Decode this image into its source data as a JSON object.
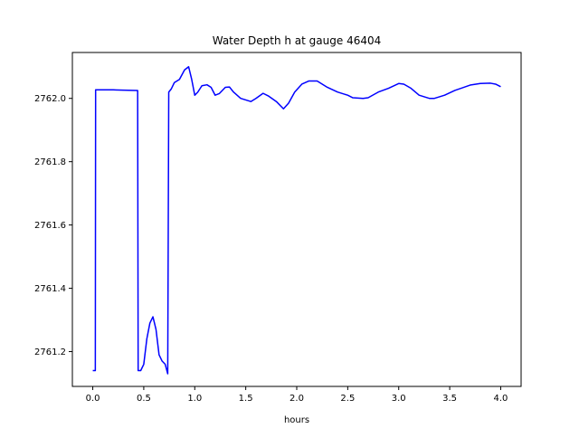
{
  "chart_data": {
    "type": "line",
    "title": "Water Depth h at gauge 46404",
    "xlabel": "hours",
    "ylabel": "",
    "xlim": [
      -0.2,
      4.2
    ],
    "ylim": [
      2761.09,
      2762.145
    ],
    "xticks": [
      0.0,
      0.5,
      1.0,
      1.5,
      2.0,
      2.5,
      3.0,
      3.5,
      4.0
    ],
    "xtick_labels": [
      "0.0",
      "0.5",
      "1.0",
      "1.5",
      "2.0",
      "2.5",
      "3.0",
      "3.5",
      "4.0"
    ],
    "yticks": [
      2761.2,
      2761.4,
      2761.6,
      2761.8,
      2762.0
    ],
    "ytick_labels": [
      "2761.2",
      "2761.4",
      "2761.6",
      "2761.8",
      "2762.0"
    ],
    "grid": false,
    "series_color": "#0000ff",
    "series": [
      {
        "points": [
          [
            0.0,
            2761.14
          ],
          [
            0.025,
            2761.14
          ],
          [
            0.028,
            2762.027
          ],
          [
            0.1,
            2762.027
          ],
          [
            0.2,
            2762.027
          ],
          [
            0.3,
            2762.026
          ],
          [
            0.44,
            2762.025
          ],
          [
            0.445,
            2761.14
          ],
          [
            0.47,
            2761.14
          ],
          [
            0.5,
            2761.16
          ],
          [
            0.53,
            2761.24
          ],
          [
            0.56,
            2761.29
          ],
          [
            0.59,
            2761.31
          ],
          [
            0.62,
            2761.27
          ],
          [
            0.65,
            2761.19
          ],
          [
            0.68,
            2761.17
          ],
          [
            0.71,
            2761.16
          ],
          [
            0.735,
            2761.13
          ],
          [
            0.745,
            2762.02
          ],
          [
            0.77,
            2762.03
          ],
          [
            0.8,
            2762.05
          ],
          [
            0.85,
            2762.06
          ],
          [
            0.9,
            2762.09
          ],
          [
            0.94,
            2762.1
          ],
          [
            0.97,
            2762.06
          ],
          [
            1.0,
            2762.01
          ],
          [
            1.03,
            2762.02
          ],
          [
            1.07,
            2762.04
          ],
          [
            1.12,
            2762.043
          ],
          [
            1.16,
            2762.035
          ],
          [
            1.2,
            2762.01
          ],
          [
            1.24,
            2762.015
          ],
          [
            1.3,
            2762.035
          ],
          [
            1.34,
            2762.036
          ],
          [
            1.38,
            2762.02
          ],
          [
            1.45,
            2762.0
          ],
          [
            1.55,
            2761.99
          ],
          [
            1.6,
            2762.0
          ],
          [
            1.67,
            2762.016
          ],
          [
            1.72,
            2762.008
          ],
          [
            1.8,
            2761.99
          ],
          [
            1.87,
            2761.967
          ],
          [
            1.92,
            2761.985
          ],
          [
            1.98,
            2762.02
          ],
          [
            2.05,
            2762.045
          ],
          [
            2.12,
            2762.055
          ],
          [
            2.2,
            2762.055
          ],
          [
            2.3,
            2762.035
          ],
          [
            2.4,
            2762.02
          ],
          [
            2.5,
            2762.01
          ],
          [
            2.55,
            2762.002
          ],
          [
            2.65,
            2762.0
          ],
          [
            2.7,
            2762.002
          ],
          [
            2.8,
            2762.02
          ],
          [
            2.9,
            2762.032
          ],
          [
            3.0,
            2762.047
          ],
          [
            3.05,
            2762.045
          ],
          [
            3.12,
            2762.032
          ],
          [
            3.2,
            2762.01
          ],
          [
            3.3,
            2762.0
          ],
          [
            3.35,
            2762.0
          ],
          [
            3.45,
            2762.01
          ],
          [
            3.55,
            2762.025
          ],
          [
            3.7,
            2762.042
          ],
          [
            3.8,
            2762.047
          ],
          [
            3.9,
            2762.048
          ],
          [
            3.95,
            2762.045
          ],
          [
            4.0,
            2762.037
          ]
        ]
      }
    ]
  }
}
